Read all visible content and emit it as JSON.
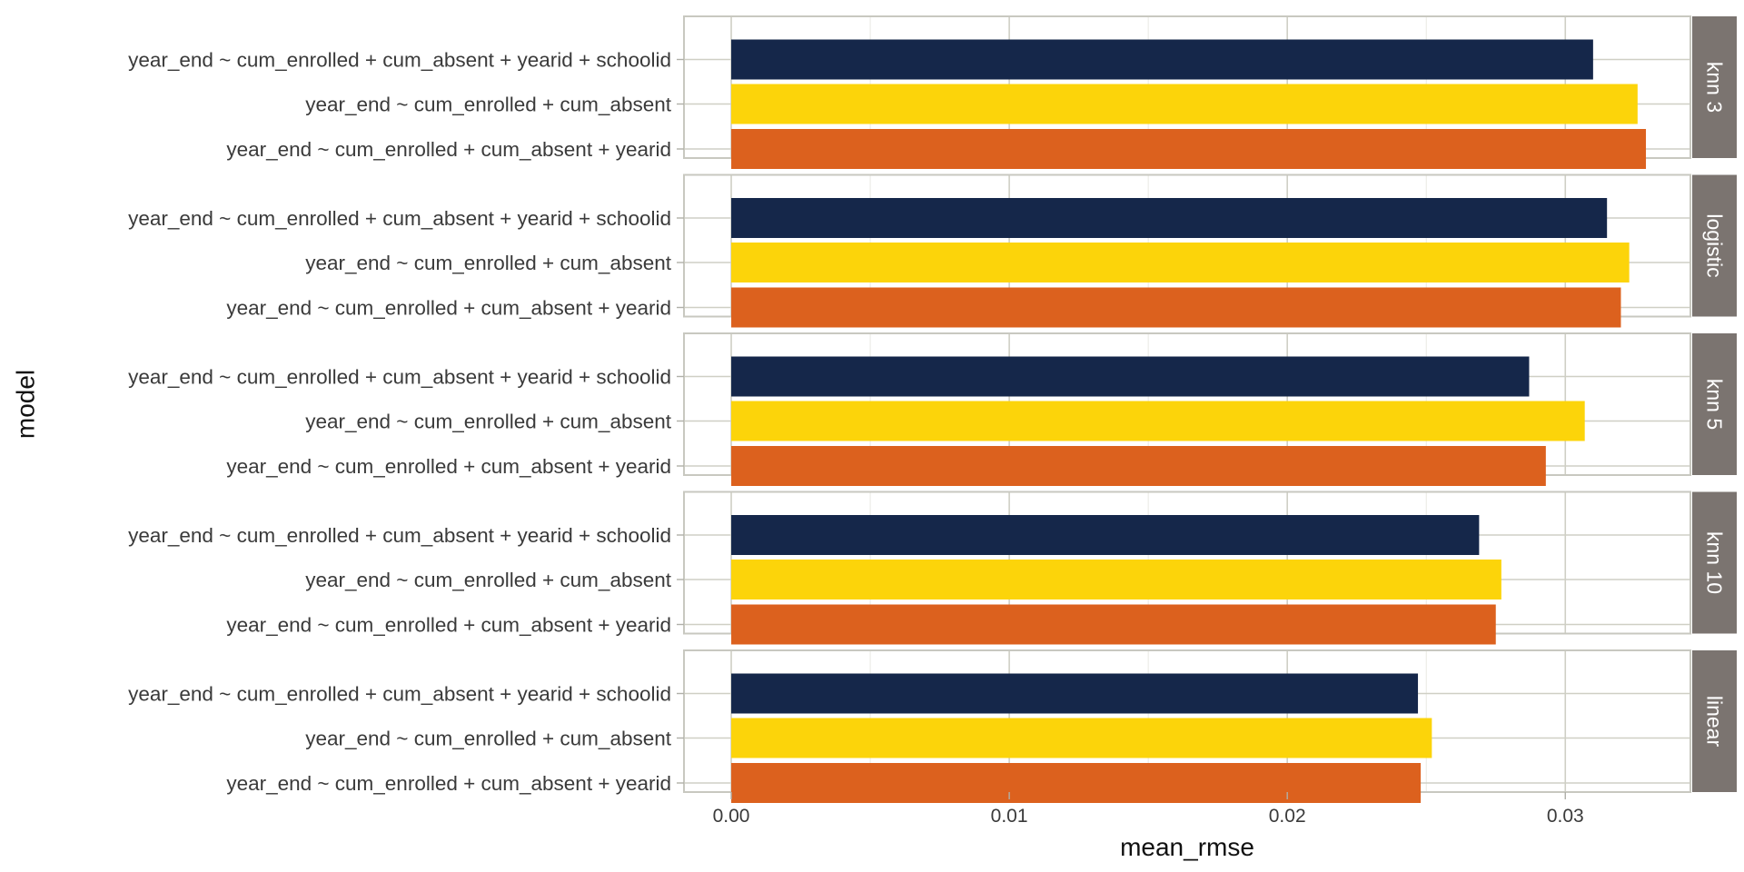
{
  "chart_data": {
    "type": "bar",
    "orientation": "horizontal",
    "facet_by": "method",
    "xlabel": "mean_rmse",
    "ylabel": "model",
    "xlim": [
      -0.0017,
      0.0345
    ],
    "x_ticks": [
      0.0,
      0.01,
      0.02,
      0.03
    ],
    "x_tick_labels": [
      "0.00",
      "0.01",
      "0.02",
      "0.03"
    ],
    "grid": true,
    "legend": "none",
    "categories": [
      "year_end ~ cum_enrolled + cum_absent + yearid + schoolid",
      "year_end ~ cum_enrolled + cum_absent",
      "year_end ~ cum_enrolled + cum_absent + yearid"
    ],
    "colors": [
      "#15274a",
      "#fcd40a",
      "#dc611e"
    ],
    "facets": [
      {
        "label": "knn 3",
        "values": [
          0.031,
          0.0326,
          0.0329
        ]
      },
      {
        "label": "logistic",
        "values": [
          0.0315,
          0.0323,
          0.032
        ]
      },
      {
        "label": "knn 5",
        "values": [
          0.0287,
          0.0307,
          0.0293
        ]
      },
      {
        "label": "knn 10",
        "values": [
          0.0269,
          0.0277,
          0.0275
        ]
      },
      {
        "label": "linear",
        "values": [
          0.0247,
          0.0252,
          0.0248
        ]
      }
    ]
  }
}
